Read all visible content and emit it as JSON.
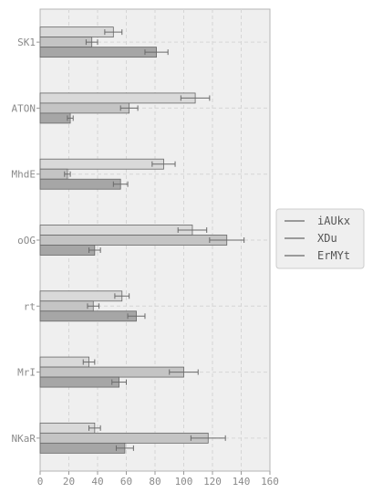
{
  "chart_data": {
    "type": "bar",
    "orientation": "horizontal",
    "categories": [
      "SK1",
      "ATON",
      "MhdE",
      "oOG",
      "rt",
      "MrI",
      "NKaR"
    ],
    "series": [
      {
        "name": "iAUkx",
        "color": "#d9d9d9",
        "values": [
          51,
          108,
          86,
          106,
          57,
          34,
          38
        ],
        "errors": [
          6,
          10,
          8,
          10,
          5,
          4,
          4
        ]
      },
      {
        "name": "XDu",
        "color": "#c4c4c4",
        "values": [
          36,
          62,
          19,
          130,
          37,
          100,
          117
        ],
        "errors": [
          4,
          6,
          2,
          12,
          4,
          10,
          12
        ]
      },
      {
        "name": "ErMYt",
        "color": "#a6a6a6",
        "values": [
          81,
          21,
          56,
          38,
          67,
          55,
          59
        ],
        "errors": [
          8,
          2,
          5,
          4,
          6,
          5,
          6
        ]
      }
    ],
    "xlim": [
      0,
      160
    ],
    "xticks": [
      0,
      20,
      40,
      60,
      80,
      100,
      120,
      140,
      160
    ],
    "xlabel": "",
    "ylabel": "",
    "title": "",
    "grid": true,
    "legend": "outside-right",
    "background": "#efefef"
  }
}
